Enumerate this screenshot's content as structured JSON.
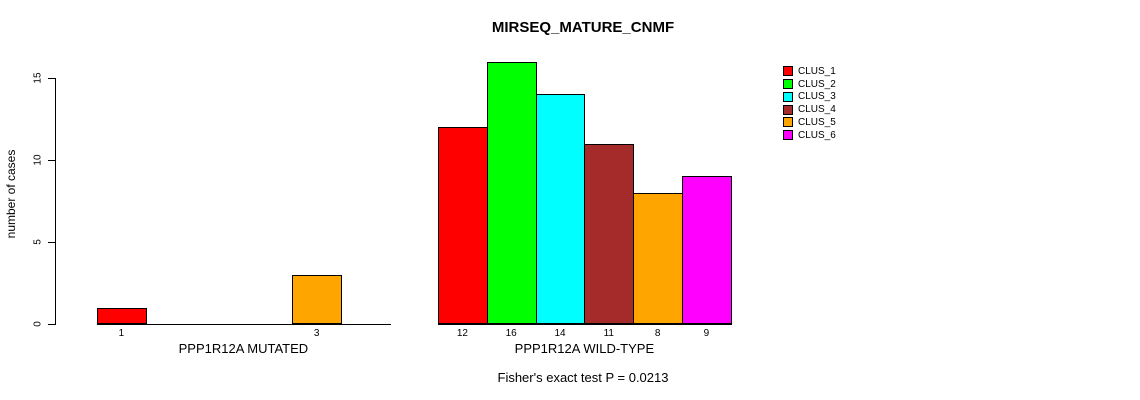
{
  "chart_data": {
    "type": "bar",
    "title": "MIRSEQ_MATURE_CNMF",
    "ylabel": "number of cases",
    "xlabel": "",
    "ylim": [
      0,
      15
    ],
    "yticks": [
      0,
      5,
      10,
      15
    ],
    "grid": false,
    "legend_position": "right",
    "series_names": [
      "CLUS_1",
      "CLUS_2",
      "CLUS_3",
      "CLUS_4",
      "CLUS_5",
      "CLUS_6"
    ],
    "series_colors": [
      "#FF0000",
      "#00FF00",
      "#00FFFF",
      "#A52A2A",
      "#FFA500",
      "#FF00FF"
    ],
    "groups": [
      {
        "label": "PPP1R12A MUTATED",
        "values": [
          1,
          0,
          0,
          0,
          3,
          0
        ],
        "bar_labels": [
          "1",
          "",
          "",
          "",
          "3",
          ""
        ]
      },
      {
        "label": "PPP1R12A WILD-TYPE",
        "values": [
          12,
          16,
          14,
          11,
          8,
          9
        ],
        "bar_labels": [
          "12",
          "16",
          "14",
          "11",
          "8",
          "9"
        ]
      }
    ],
    "annotation": "Fisher's exact test P = 0.0213"
  }
}
